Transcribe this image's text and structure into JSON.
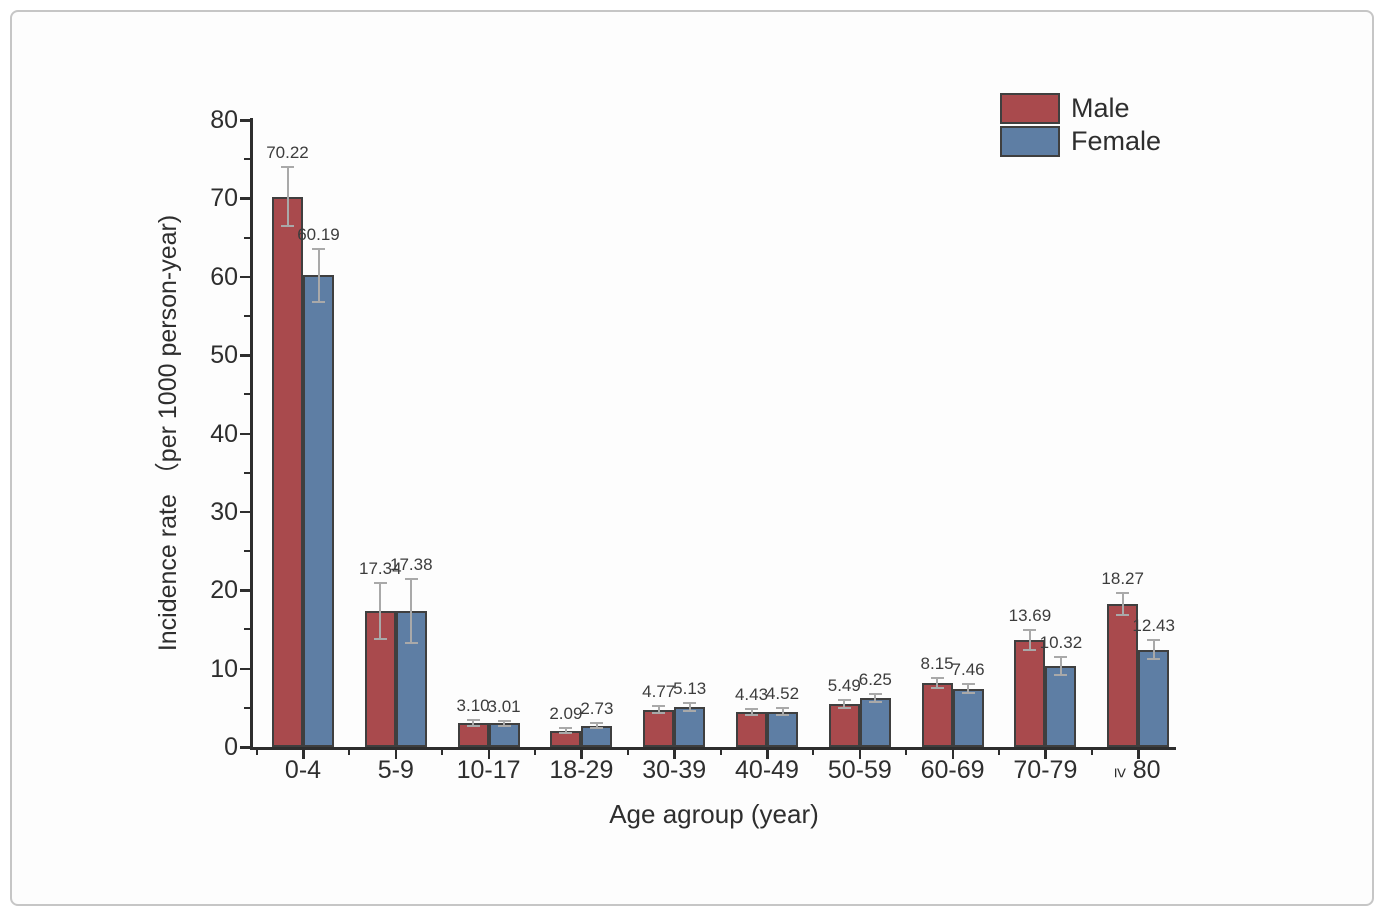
{
  "figure": {
    "background": "#fdfdfd",
    "frame_border_color": "#c6c6c6"
  },
  "chart_data": {
    "type": "bar",
    "title": "",
    "xlabel": "Age agroup (year)",
    "ylabel": "Incidence rate （per 1000 person-year)",
    "categories": [
      "0-4",
      "5-9",
      "10-17",
      "18-29",
      "30-39",
      "40-49",
      "50-59",
      "60-69",
      "70-79",
      "≥ 80"
    ],
    "series": [
      {
        "name": "Male",
        "color": "#a94a4d",
        "values": [
          70.22,
          17.34,
          3.1,
          2.09,
          4.77,
          4.43,
          5.49,
          8.15,
          13.69,
          18.27
        ],
        "errors": [
          3.8,
          3.6,
          0.4,
          0.3,
          0.45,
          0.4,
          0.5,
          0.6,
          1.3,
          1.4
        ],
        "labels": [
          "70.22",
          "17.34",
          "3.10",
          "2.09",
          "4.77",
          "4.43",
          "5.49",
          "8.15",
          "13.69",
          "18.27"
        ]
      },
      {
        "name": "Female",
        "color": "#5e7ea4",
        "values": [
          60.19,
          17.38,
          3.01,
          2.73,
          5.13,
          4.52,
          6.25,
          7.46,
          10.32,
          12.43
        ],
        "errors": [
          3.4,
          4.1,
          0.35,
          0.35,
          0.5,
          0.4,
          0.55,
          0.6,
          1.1,
          1.2
        ],
        "labels": [
          "60.19",
          "17.38",
          "3.01",
          "2.73",
          "5.13",
          "4.52",
          "6.25",
          "7.46",
          "10.32",
          "12.43"
        ]
      }
    ],
    "ylim": [
      0,
      80
    ],
    "y_major_step": 10,
    "y_minor_step": 5,
    "y_tick_labels": [
      "0",
      "10",
      "20",
      "30",
      "40",
      "50",
      "60",
      "70",
      "80"
    ],
    "grid": false,
    "legend_position": "top-right",
    "bar_border_color": "#3f3f3f",
    "error_bar_color": "#a9a9a9",
    "axis_color": "#2e2e2e",
    "value_label_color": "#3c3c3c"
  }
}
